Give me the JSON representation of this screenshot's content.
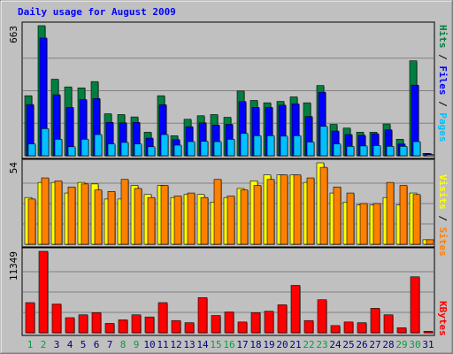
{
  "chart_data": [
    {
      "type": "bar",
      "title": "Daily usage for August 2009",
      "ymax_label": "663",
      "ylim": [
        0,
        663
      ],
      "categories": [
        "1",
        "2",
        "3",
        "4",
        "5",
        "6",
        "7",
        "8",
        "9",
        "10",
        "11",
        "12",
        "13",
        "14",
        "15",
        "16",
        "17",
        "18",
        "19",
        "20",
        "21",
        "22",
        "23",
        "24",
        "25",
        "26",
        "27",
        "28",
        "29",
        "30",
        "31"
      ],
      "weekend_days": [
        "1",
        "2",
        "8",
        "9",
        "15",
        "16",
        "22",
        "23",
        "29",
        "30"
      ],
      "grid": true,
      "legend": "right",
      "ylabel_parts": [
        "Pages",
        "Files",
        "Hits"
      ],
      "series": [
        {
          "name": "Hits",
          "color": "#008040",
          "values": [
            306,
            663,
            390,
            351,
            346,
            378,
            214,
            210,
            198,
            120,
            306,
            102,
            186,
            204,
            210,
            196,
            330,
            282,
            270,
            277,
            300,
            270,
            358,
            160,
            141,
            120,
            120,
            162,
            84,
            484,
            12
          ]
        },
        {
          "name": "Files",
          "color": "#0000ff",
          "values": [
            261,
            600,
            311,
            246,
            286,
            292,
            170,
            168,
            170,
            90,
            260,
            82,
            148,
            168,
            156,
            160,
            276,
            246,
            246,
            258,
            264,
            200,
            324,
            126,
            108,
            104,
            112,
            132,
            60,
            360,
            10
          ]
        },
        {
          "name": "Pages",
          "color": "#00c0ff",
          "values": [
            60,
            138,
            84,
            46,
            84,
            108,
            60,
            68,
            60,
            46,
            108,
            54,
            72,
            74,
            72,
            84,
            114,
            102,
            102,
            100,
            102,
            70,
            150,
            60,
            48,
            50,
            52,
            48,
            48,
            72,
            6
          ]
        }
      ]
    },
    {
      "type": "bar",
      "ymax_label": "54",
      "ylim": [
        0,
        54
      ],
      "categories": [
        "1",
        "2",
        "3",
        "4",
        "5",
        "6",
        "7",
        "8",
        "9",
        "10",
        "11",
        "12",
        "13",
        "14",
        "15",
        "16",
        "17",
        "18",
        "19",
        "20",
        "21",
        "22",
        "23",
        "24",
        "25",
        "26",
        "27",
        "28",
        "29",
        "30",
        "31"
      ],
      "grid": true,
      "legend": "right",
      "ylabel_parts": [
        "Sites",
        "Visits"
      ],
      "series": [
        {
          "name": "Visits",
          "color": "#ffff00",
          "values": [
            31,
            41,
            41,
            34,
            41,
            40,
            30,
            30,
            39,
            33,
            39,
            31,
            33,
            33,
            28,
            31,
            37,
            42,
            46,
            46,
            46,
            41,
            54,
            34,
            28,
            26,
            26,
            31,
            26,
            34,
            3
          ]
        },
        {
          "name": "Sites",
          "color": "#ff8000",
          "values": [
            30,
            44,
            42,
            38,
            40,
            36,
            35,
            43,
            37,
            31,
            39,
            32,
            34,
            31,
            43,
            32,
            36,
            39,
            43,
            46,
            46,
            44,
            51,
            38,
            34,
            27,
            27,
            41,
            39,
            33,
            3
          ]
        }
      ]
    },
    {
      "type": "bar",
      "ymax_label": "11349",
      "ylim": [
        0,
        11349
      ],
      "categories": [
        "1",
        "2",
        "3",
        "4",
        "5",
        "6",
        "7",
        "8",
        "9",
        "10",
        "11",
        "12",
        "13",
        "14",
        "15",
        "16",
        "17",
        "18",
        "19",
        "20",
        "21",
        "22",
        "23",
        "24",
        "25",
        "26",
        "27",
        "28",
        "29",
        "30",
        "31"
      ],
      "grid": true,
      "legend": "right",
      "ylabel_parts": [
        "KBytes"
      ],
      "series": [
        {
          "name": "KBytes",
          "color": "#ff0000",
          "values": [
            4200,
            11349,
            4000,
            2100,
            2500,
            2800,
            1300,
            1800,
            2500,
            2200,
            4200,
            1700,
            1400,
            4900,
            2400,
            2900,
            1500,
            2800,
            3000,
            3900,
            6600,
            1700,
            4600,
            1000,
            1500,
            1400,
            3400,
            2500,
            700,
            7800,
            200
          ]
        }
      ]
    }
  ],
  "colors": {
    "background": "#c0c0c0",
    "frame": "#ffffff",
    "title": "#0000ff",
    "axis_text": "#000000",
    "weekday_label": "#000080",
    "weekend_label": "#00a040",
    "grid": "#808080"
  }
}
